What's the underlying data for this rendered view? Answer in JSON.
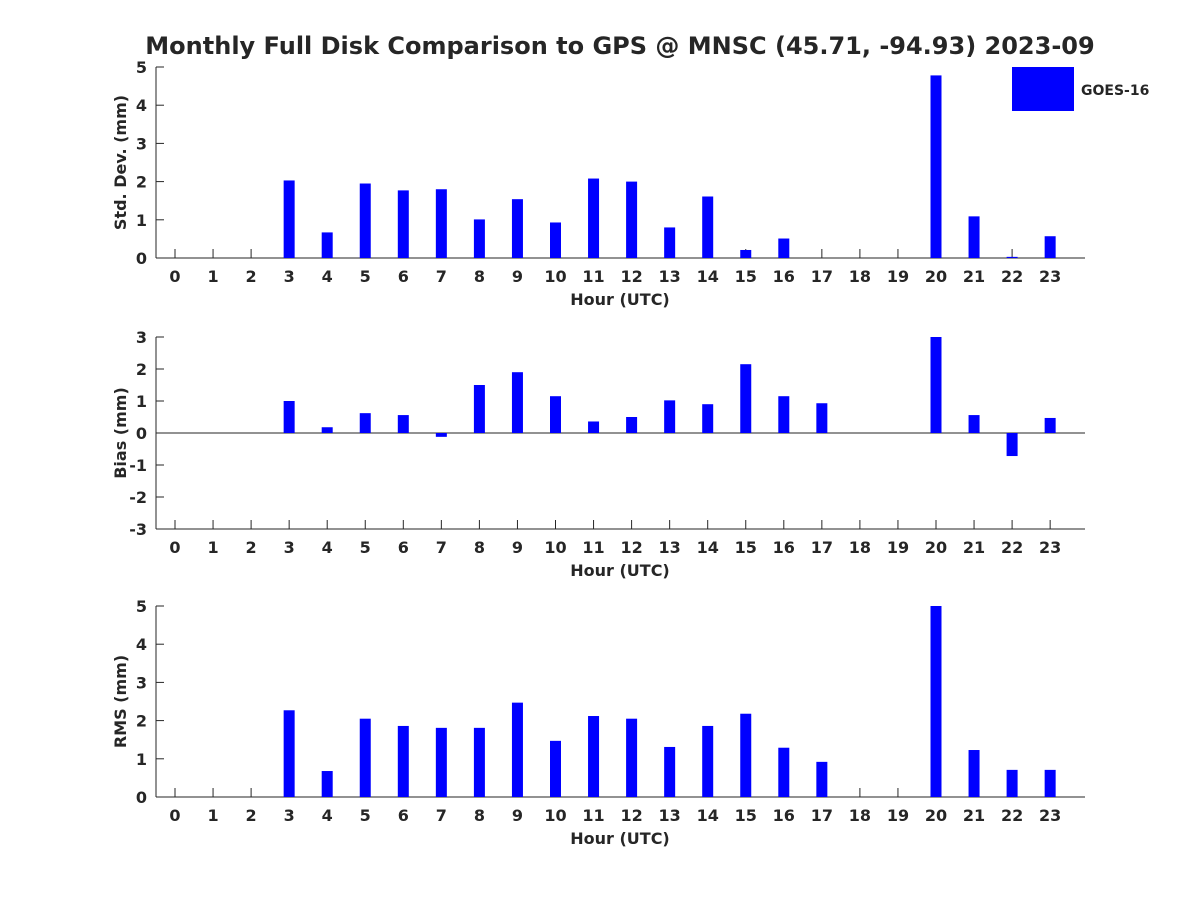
{
  "title": "Monthly Full Disk Comparison to GPS @ MNSC (45.71, -94.93) 2023-09",
  "legend": {
    "label": "GOES-16",
    "color": "#0000ff",
    "placement": "top-right"
  },
  "chart_data": [
    {
      "type": "bar",
      "name": "std-dev",
      "ylabel": "Std. Dev. (mm)",
      "xlabel": "Hour (UTC)",
      "ylim": [
        0,
        5
      ],
      "yticks": [
        "0",
        "1",
        "2",
        "3",
        "4",
        "5"
      ],
      "categories": [
        "0",
        "1",
        "2",
        "3",
        "4",
        "5",
        "6",
        "7",
        "8",
        "9",
        "10",
        "11",
        "12",
        "13",
        "14",
        "15",
        "16",
        "17",
        "18",
        "19",
        "20",
        "21",
        "22",
        "23"
      ],
      "series": [
        {
          "name": "GOES-16",
          "values": [
            null,
            null,
            null,
            2.03,
            0.67,
            1.95,
            1.77,
            1.8,
            1.01,
            1.54,
            0.93,
            2.08,
            2.0,
            0.8,
            1.61,
            0.21,
            0.51,
            null,
            null,
            null,
            4.78,
            1.09,
            0.03,
            0.57
          ]
        }
      ]
    },
    {
      "type": "bar",
      "name": "bias",
      "ylabel": "Bias (mm)",
      "xlabel": "Hour (UTC)",
      "ylim": [
        -3,
        3
      ],
      "yticks": [
        "-3",
        "-2",
        "-1",
        "0",
        "1",
        "2",
        "3"
      ],
      "categories": [
        "0",
        "1",
        "2",
        "3",
        "4",
        "5",
        "6",
        "7",
        "8",
        "9",
        "10",
        "11",
        "12",
        "13",
        "14",
        "15",
        "16",
        "17",
        "18",
        "19",
        "20",
        "21",
        "22",
        "23"
      ],
      "series": [
        {
          "name": "GOES-16",
          "values": [
            null,
            null,
            null,
            1.0,
            0.18,
            0.62,
            0.56,
            -0.12,
            1.5,
            1.9,
            1.15,
            0.36,
            0.5,
            1.02,
            0.9,
            2.15,
            1.15,
            0.93,
            null,
            null,
            3.0,
            0.56,
            -0.72,
            0.47
          ]
        }
      ]
    },
    {
      "type": "bar",
      "name": "rms",
      "ylabel": "RMS (mm)",
      "xlabel": "Hour (UTC)",
      "ylim": [
        0,
        5
      ],
      "yticks": [
        "0",
        "1",
        "2",
        "3",
        "4",
        "5"
      ],
      "categories": [
        "0",
        "1",
        "2",
        "3",
        "4",
        "5",
        "6",
        "7",
        "8",
        "9",
        "10",
        "11",
        "12",
        "13",
        "14",
        "15",
        "16",
        "17",
        "18",
        "19",
        "20",
        "21",
        "22",
        "23"
      ],
      "series": [
        {
          "name": "GOES-16",
          "values": [
            null,
            null,
            null,
            2.27,
            0.68,
            2.05,
            1.86,
            1.81,
            1.81,
            2.47,
            1.47,
            2.12,
            2.05,
            1.31,
            1.86,
            2.18,
            1.29,
            0.92,
            null,
            null,
            5.0,
            1.23,
            0.71,
            0.71
          ]
        }
      ]
    }
  ]
}
